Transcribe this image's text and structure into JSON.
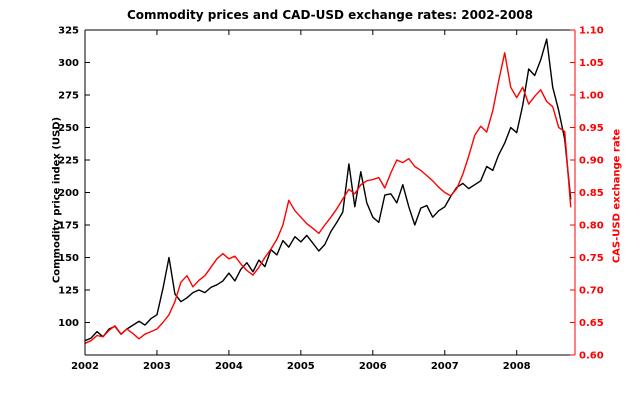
{
  "chart_data": {
    "type": "line",
    "title": "Commodity prices and CAD-USD exchange rates: 2002-2008",
    "x": [
      2002.0,
      2002.083,
      2002.167,
      2002.25,
      2002.333,
      2002.417,
      2002.5,
      2002.583,
      2002.667,
      2002.75,
      2002.833,
      2002.917,
      2003.0,
      2003.083,
      2003.167,
      2003.25,
      2003.333,
      2003.417,
      2003.5,
      2003.583,
      2003.667,
      2003.75,
      2003.833,
      2003.917,
      2004.0,
      2004.083,
      2004.167,
      2004.25,
      2004.333,
      2004.417,
      2004.5,
      2004.583,
      2004.667,
      2004.75,
      2004.833,
      2004.917,
      2005.0,
      2005.083,
      2005.167,
      2005.25,
      2005.333,
      2005.417,
      2005.5,
      2005.583,
      2005.667,
      2005.75,
      2005.833,
      2005.917,
      2006.0,
      2006.083,
      2006.167,
      2006.25,
      2006.333,
      2006.417,
      2006.5,
      2006.583,
      2006.667,
      2006.75,
      2006.833,
      2006.917,
      2007.0,
      2007.083,
      2007.167,
      2007.25,
      2007.333,
      2007.417,
      2007.5,
      2007.583,
      2007.667,
      2007.75,
      2007.833,
      2007.917,
      2008.0,
      2008.083,
      2008.167,
      2008.25,
      2008.333,
      2008.417,
      2008.5,
      2008.583,
      2008.667,
      2008.75
    ],
    "series": [
      {
        "name": "Commodity price index (USD)",
        "axis": "left",
        "color": "#000000",
        "data_name": "commodity-price-line",
        "values": [
          86,
          88,
          93,
          89,
          95,
          97,
          91,
          95,
          98,
          101,
          98,
          103,
          106,
          126,
          150,
          122,
          116,
          119,
          123,
          125,
          123,
          127,
          129,
          132,
          138,
          132,
          141,
          146,
          139,
          148,
          143,
          156,
          152,
          163,
          158,
          166,
          162,
          167,
          161,
          155,
          160,
          170,
          177,
          185,
          222,
          189,
          216,
          192,
          181,
          177,
          198,
          199,
          192,
          206,
          189,
          175,
          188,
          190,
          181,
          186,
          189,
          197,
          204,
          207,
          203,
          206,
          209,
          220,
          217,
          229,
          238,
          250,
          246,
          267,
          295,
          290,
          302,
          318,
          281,
          263,
          241,
          195
        ]
      },
      {
        "name": "CAD-USD exchange rate",
        "axis": "right",
        "color": "#ff0000",
        "data_name": "exchange-rate-line",
        "values": [
          0.618,
          0.622,
          0.63,
          0.628,
          0.638,
          0.645,
          0.632,
          0.64,
          0.633,
          0.625,
          0.632,
          0.636,
          0.64,
          0.65,
          0.662,
          0.682,
          0.712,
          0.722,
          0.705,
          0.715,
          0.722,
          0.735,
          0.748,
          0.756,
          0.748,
          0.752,
          0.74,
          0.73,
          0.723,
          0.735,
          0.75,
          0.763,
          0.778,
          0.8,
          0.838,
          0.822,
          0.812,
          0.802,
          0.795,
          0.787,
          0.8,
          0.812,
          0.825,
          0.84,
          0.855,
          0.848,
          0.862,
          0.868,
          0.87,
          0.873,
          0.857,
          0.88,
          0.9,
          0.896,
          0.902,
          0.89,
          0.884,
          0.876,
          0.868,
          0.858,
          0.85,
          0.845,
          0.856,
          0.878,
          0.906,
          0.938,
          0.952,
          0.943,
          0.976,
          1.022,
          1.065,
          1.012,
          0.996,
          1.012,
          0.986,
          0.998,
          1.008,
          0.99,
          0.982,
          0.95,
          0.944,
          0.828
        ]
      }
    ],
    "x_axis": {
      "range": [
        2002,
        2008.81
      ],
      "tick_values": [
        2002,
        2003,
        2004,
        2005,
        2006,
        2007,
        2008
      ],
      "tick_labels": [
        "2002",
        "2003",
        "2004",
        "2005",
        "2006",
        "2007",
        "2008"
      ],
      "color": "#000000"
    },
    "left_axis": {
      "label": "Commodity price index (USD)",
      "range": [
        75,
        325
      ],
      "tick_values": [
        100,
        125,
        150,
        175,
        200,
        225,
        250,
        275,
        300,
        325
      ],
      "tick_labels": [
        "100",
        "125",
        "150",
        "175",
        "200",
        "225",
        "250",
        "275",
        "300",
        "325"
      ],
      "color": "#000000"
    },
    "right_axis": {
      "label": "CAS-USD exchange rate",
      "range": [
        0.6,
        1.1
      ],
      "tick_values": [
        0.6,
        0.65,
        0.7,
        0.75,
        0.8,
        0.85,
        0.9,
        0.95,
        1.0,
        1.05,
        1.1
      ],
      "tick_labels": [
        "0.60",
        "0.65",
        "0.70",
        "0.75",
        "0.80",
        "0.85",
        "0.90",
        "0.95",
        "1.00",
        "1.05",
        "1.10"
      ],
      "color": "#ff0000"
    },
    "grid": false,
    "legend": "none",
    "background": "#ffffff"
  }
}
